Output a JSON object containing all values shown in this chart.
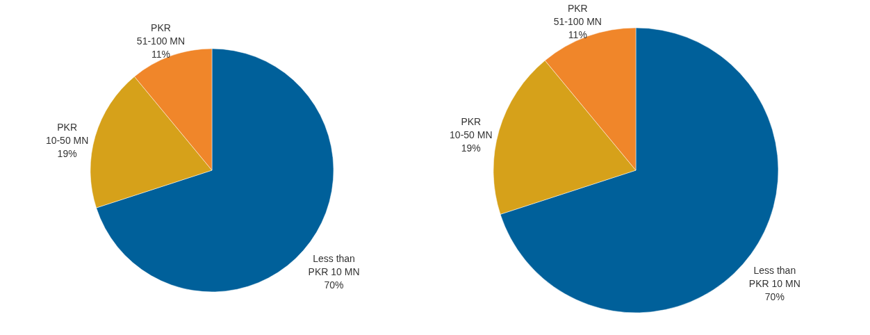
{
  "chart_data": [
    {
      "type": "pie",
      "categories": [
        "Less than\nPKR 10 MN",
        "PKR\n10-50 MN",
        "PKR\n51-100 MN"
      ],
      "values": [
        70,
        19,
        11
      ],
      "value_labels": [
        "70%",
        "19%",
        "11%"
      ],
      "colors": [
        "#00609a",
        "#d6a11a",
        "#f0862a"
      ]
    },
    {
      "type": "pie",
      "categories": [
        "Less than\nPKR 10 MN",
        "PKR\n10-50 MN",
        "PKR\n51-100 MN"
      ],
      "values": [
        70,
        19,
        11
      ],
      "value_labels": [
        "70%",
        "19%",
        "11%"
      ],
      "colors": [
        "#00609a",
        "#d6a11a",
        "#f0862a"
      ]
    }
  ]
}
